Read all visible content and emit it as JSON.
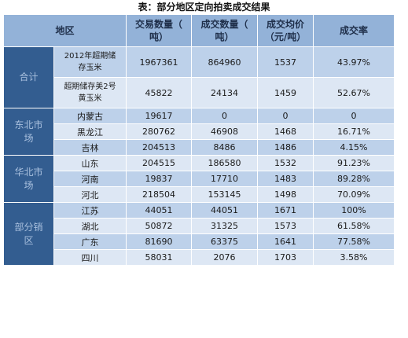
{
  "title": "表：部分地区定向拍卖成交结果",
  "headers": {
    "region": "地区",
    "volume": [
      "交易数量（",
      "吨）"
    ],
    "deal": [
      "成交数量（",
      "吨）"
    ],
    "price": [
      "成交均价",
      "（元/吨）"
    ],
    "rate": "成交率"
  },
  "groups": {
    "total": [
      "合计"
    ],
    "northeast": [
      "东北市",
      "场"
    ],
    "north": [
      "华北市",
      "场"
    ],
    "south": [
      "部分销",
      "区"
    ]
  },
  "rows": [
    {
      "name": [
        "2012年超期储",
        "存玉米"
      ],
      "volume": "1967361",
      "deal": "864960",
      "price": "1537",
      "rate": "43.97%"
    },
    {
      "name": [
        "超期储存美2号",
        "黄玉米"
      ],
      "volume": "45822",
      "deal": "24134",
      "price": "1459",
      "rate": "52.67%"
    },
    {
      "name": [
        "内蒙古"
      ],
      "volume": "19617",
      "deal": "0",
      "price": "0",
      "rate": "0"
    },
    {
      "name": [
        "黑龙江"
      ],
      "volume": "280762",
      "deal": "46908",
      "price": "1468",
      "rate": "16.71%"
    },
    {
      "name": [
        "吉林"
      ],
      "volume": "204513",
      "deal": "8486",
      "price": "1486",
      "rate": "4.15%"
    },
    {
      "name": [
        "山东"
      ],
      "volume": "204515",
      "deal": "186580",
      "price": "1532",
      "rate": "91.23%"
    },
    {
      "name": [
        "河南"
      ],
      "volume": "19837",
      "deal": "17710",
      "price": "1483",
      "rate": "89.28%"
    },
    {
      "name": [
        "河北"
      ],
      "volume": "218504",
      "deal": "153145",
      "price": "1498",
      "rate": "70.09%"
    },
    {
      "name": [
        "江苏"
      ],
      "volume": "44051",
      "deal": "44051",
      "price": "1671",
      "rate": "100%"
    },
    {
      "name": [
        "湖北"
      ],
      "volume": "50872",
      "deal": "31325",
      "price": "1573",
      "rate": "61.58%"
    },
    {
      "name": [
        "广东"
      ],
      "volume": "81690",
      "deal": "63375",
      "price": "1641",
      "rate": "77.58%"
    },
    {
      "name": [
        "四川"
      ],
      "volume": "58031",
      "deal": "2076",
      "price": "1703",
      "rate": "3.58%"
    }
  ]
}
